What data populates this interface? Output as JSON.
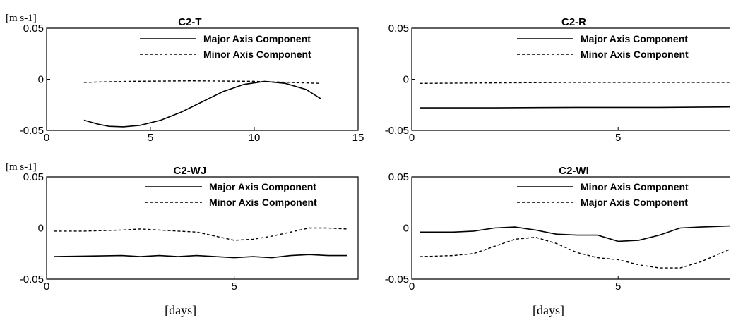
{
  "chart_data": [
    {
      "type": "line",
      "title": "C2-T",
      "ylabel": "[m s-1]",
      "xlabel": "",
      "xlim": [
        0,
        15
      ],
      "ylim": [
        -0.05,
        0.05
      ],
      "xticks": [
        0,
        5,
        10,
        15
      ],
      "yticks": [
        {
          "v": -0.05,
          "label": "-0.05"
        },
        {
          "v": 0,
          "label": "0"
        },
        {
          "v": 0.05,
          "label": "0.05"
        }
      ],
      "legend_position": "top-right",
      "series": [
        {
          "name": "Major Axis Component",
          "style": "solid",
          "x": [
            1.8,
            2.5,
            3.0,
            3.7,
            4.5,
            5.5,
            6.5,
            7.5,
            8.5,
            9.5,
            10.5,
            11.5,
            12.5,
            13.2
          ],
          "y": [
            -0.04,
            -0.044,
            -0.046,
            -0.0465,
            -0.045,
            -0.04,
            -0.032,
            -0.022,
            -0.012,
            -0.005,
            -0.002,
            -0.004,
            -0.01,
            -0.019
          ]
        },
        {
          "name": "Minor Axis Component",
          "style": "dashed",
          "x": [
            1.8,
            4.0,
            7.0,
            10.0,
            13.2
          ],
          "y": [
            -0.003,
            -0.002,
            -0.0015,
            -0.002,
            -0.004
          ]
        }
      ]
    },
    {
      "type": "line",
      "title": "C2-R",
      "ylabel": "",
      "xlabel": "",
      "xlim": [
        0,
        7.7
      ],
      "ylim": [
        -0.05,
        0.05
      ],
      "xticks": [
        0,
        5
      ],
      "yticks": [
        {
          "v": -0.05,
          "label": "-0.05"
        },
        {
          "v": 0,
          "label": "0"
        },
        {
          "v": 0.05,
          "label": "0.05"
        }
      ],
      "legend_position": "top-right",
      "series": [
        {
          "name": "Major Axis Component",
          "style": "solid",
          "x": [
            0.2,
            2.0,
            4.0,
            6.0,
            7.7
          ],
          "y": [
            -0.028,
            -0.028,
            -0.0275,
            -0.0275,
            -0.027
          ]
        },
        {
          "name": "Minor Axis Component",
          "style": "dashed",
          "x": [
            0.2,
            2.0,
            4.0,
            6.0,
            7.7
          ],
          "y": [
            -0.004,
            -0.0035,
            -0.003,
            -0.003,
            -0.003
          ]
        }
      ]
    },
    {
      "type": "line",
      "title": "C2-WJ",
      "ylabel": "[m s-1]",
      "xlabel": "[days]",
      "xlim": [
        0,
        8.3
      ],
      "ylim": [
        -0.05,
        0.05
      ],
      "xticks": [
        0,
        5
      ],
      "yticks": [
        {
          "v": -0.05,
          "label": "-0.05"
        },
        {
          "v": 0,
          "label": "0"
        },
        {
          "v": 0.05,
          "label": "0.05"
        }
      ],
      "legend_position": "top-right",
      "series": [
        {
          "name": "Major Axis Component",
          "style": "solid",
          "x": [
            0.2,
            1.0,
            2.0,
            2.5,
            3.0,
            3.5,
            4.0,
            4.5,
            5.0,
            5.5,
            6.0,
            6.5,
            7.0,
            7.5,
            8.0
          ],
          "y": [
            -0.028,
            -0.0275,
            -0.027,
            -0.028,
            -0.027,
            -0.028,
            -0.027,
            -0.028,
            -0.029,
            -0.028,
            -0.029,
            -0.027,
            -0.026,
            -0.027,
            -0.027
          ]
        },
        {
          "name": "Minor Axis Component",
          "style": "dashed",
          "x": [
            0.2,
            1.0,
            2.0,
            2.5,
            3.0,
            3.5,
            4.0,
            4.5,
            5.0,
            5.5,
            6.0,
            6.5,
            7.0,
            7.5,
            8.0
          ],
          "y": [
            -0.003,
            -0.003,
            -0.002,
            -0.001,
            -0.002,
            -0.003,
            -0.004,
            -0.008,
            -0.012,
            -0.011,
            -0.008,
            -0.004,
            0.0,
            0.0,
            -0.001
          ]
        }
      ]
    },
    {
      "type": "line",
      "title": "C2-WI",
      "ylabel": "",
      "xlabel": "[days]",
      "xlim": [
        0,
        7.7
      ],
      "ylim": [
        -0.05,
        0.05
      ],
      "xticks": [
        0,
        5
      ],
      "yticks": [
        {
          "v": -0.05,
          "label": "-0.05"
        },
        {
          "v": 0,
          "label": "0"
        },
        {
          "v": 0.05,
          "label": "0.05"
        }
      ],
      "legend_position": "top-right",
      "series": [
        {
          "name": "Minor Axis Component",
          "style": "solid",
          "x": [
            0.2,
            1.0,
            1.5,
            2.0,
            2.5,
            3.0,
            3.5,
            4.0,
            4.5,
            5.0,
            5.5,
            6.0,
            6.5,
            7.0,
            7.7
          ],
          "y": [
            -0.004,
            -0.004,
            -0.003,
            0.0,
            0.001,
            -0.002,
            -0.006,
            -0.007,
            -0.007,
            -0.013,
            -0.012,
            -0.007,
            0.0,
            0.001,
            0.002
          ]
        },
        {
          "name": "Major Axis Component",
          "style": "dashed",
          "x": [
            0.2,
            1.0,
            1.5,
            2.0,
            2.5,
            3.0,
            3.5,
            4.0,
            4.5,
            5.0,
            5.5,
            6.0,
            6.5,
            7.0,
            7.7
          ],
          "y": [
            -0.028,
            -0.027,
            -0.025,
            -0.018,
            -0.011,
            -0.009,
            -0.015,
            -0.024,
            -0.029,
            -0.031,
            -0.036,
            -0.039,
            -0.039,
            -0.033,
            -0.021
          ]
        }
      ]
    }
  ]
}
